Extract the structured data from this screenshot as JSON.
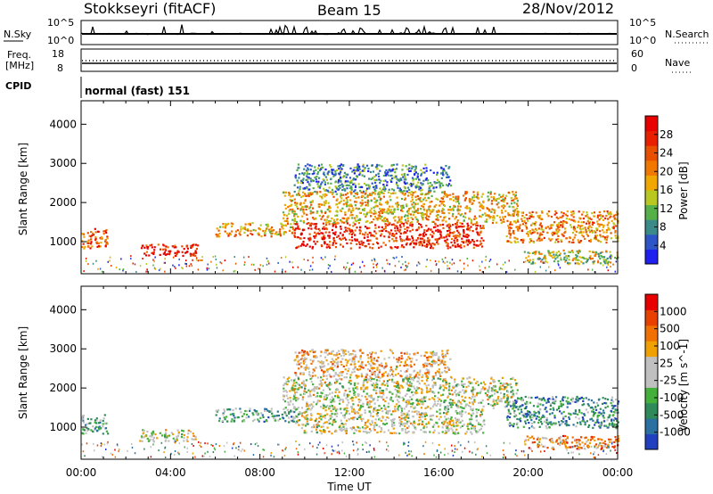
{
  "header": {
    "station": "Stokkseyri (fitACF)",
    "beam": "Beam 15",
    "date": "28/Nov/2012"
  },
  "panels": {
    "nsky": {
      "label": "N.Sky",
      "right_label": "N.Search",
      "left_ticks": [
        "10^5",
        "10^0"
      ],
      "right_ticks": [
        "10^5",
        "10^0"
      ]
    },
    "freq": {
      "label_line1": "Freq.",
      "label_line2": "[MHz]",
      "left_ticks": [
        "18",
        "8"
      ],
      "right_label": "Nave",
      "right_ticks": [
        "60",
        "0"
      ]
    },
    "cpid": {
      "label": "CPID",
      "text": "normal (fast) 151"
    }
  },
  "chart_data": [
    {
      "type": "heatmap",
      "name": "power",
      "ylabel": "Slant Range [km]",
      "ylim": [
        180,
        4600
      ],
      "yticks": [
        1000,
        2000,
        3000,
        4000
      ],
      "xlim": [
        0,
        24
      ],
      "colorbar": {
        "label": "Power [dB]",
        "ticks": [
          "4",
          "8",
          "12",
          "16",
          "20",
          "24",
          "28"
        ],
        "colors": [
          "#1f1ff0",
          "#2d55c8",
          "#3a8a8a",
          "#55b04a",
          "#b8c820",
          "#f0a800",
          "#f07800",
          "#e85000",
          "#e82000",
          "#e80000"
        ]
      },
      "regions": [
        {
          "t0": 0.0,
          "t1": 1.2,
          "r0": 850,
          "r1": 1350,
          "level": 0.72
        },
        {
          "t0": 2.6,
          "t1": 5.2,
          "r0": 650,
          "r1": 950,
          "level": 0.9
        },
        {
          "t0": 6.0,
          "t1": 9.5,
          "r0": 1150,
          "r1": 1500,
          "level": 0.6
        },
        {
          "t0": 9.5,
          "t1": 18.0,
          "r0": 850,
          "r1": 1500,
          "level": 0.85
        },
        {
          "t0": 9.0,
          "t1": 19.5,
          "r0": 1500,
          "r1": 2300,
          "level": 0.55
        },
        {
          "t0": 9.5,
          "t1": 16.5,
          "r0": 2300,
          "r1": 3000,
          "level": 0.25
        },
        {
          "t0": 19.0,
          "t1": 24.0,
          "r0": 1000,
          "r1": 1800,
          "level": 0.65
        },
        {
          "t0": 19.8,
          "t1": 24.0,
          "r0": 450,
          "r1": 800,
          "level": 0.45
        }
      ]
    },
    {
      "type": "heatmap",
      "name": "velocity",
      "ylabel": "Slant Range [km]",
      "ylim": [
        180,
        4600
      ],
      "yticks": [
        1000,
        2000,
        3000,
        4000
      ],
      "xlim": [
        0,
        24
      ],
      "xlabel": "Time UT",
      "xticks": [
        "00:00",
        "04:00",
        "08:00",
        "12:00",
        "16:00",
        "20:00",
        "00:00"
      ],
      "colorbar": {
        "label": "Velocity [m s^-1]",
        "ticks": [
          "1000",
          "500",
          "100",
          "25",
          "-25",
          "-100",
          "-500",
          "-1000"
        ],
        "colors": [
          "#2040c0",
          "#2a70a0",
          "#2e8a58",
          "#44b03c",
          "#c0c0c0",
          "#c0c0c0",
          "#f0a000",
          "#f07000",
          "#e84000",
          "#e80000"
        ]
      },
      "regions": [
        {
          "t0": 0.0,
          "t1": 1.2,
          "r0": 850,
          "r1": 1350,
          "level": 0.35
        },
        {
          "t0": 2.6,
          "t1": 5.2,
          "r0": 650,
          "r1": 950,
          "level": 0.5
        },
        {
          "t0": 6.0,
          "t1": 9.5,
          "r0": 1150,
          "r1": 1500,
          "level": 0.3
        },
        {
          "t0": 9.5,
          "t1": 18.0,
          "r0": 850,
          "r1": 1500,
          "level": 0.5
        },
        {
          "t0": 9.0,
          "t1": 19.5,
          "r0": 1500,
          "r1": 2300,
          "level": 0.5
        },
        {
          "t0": 9.5,
          "t1": 16.5,
          "r0": 2300,
          "r1": 3000,
          "level": 0.62
        },
        {
          "t0": 19.0,
          "t1": 24.0,
          "r0": 1000,
          "r1": 1800,
          "level": 0.25
        },
        {
          "t0": 19.8,
          "t1": 24.0,
          "r0": 450,
          "r1": 800,
          "level": 0.7
        }
      ]
    }
  ]
}
